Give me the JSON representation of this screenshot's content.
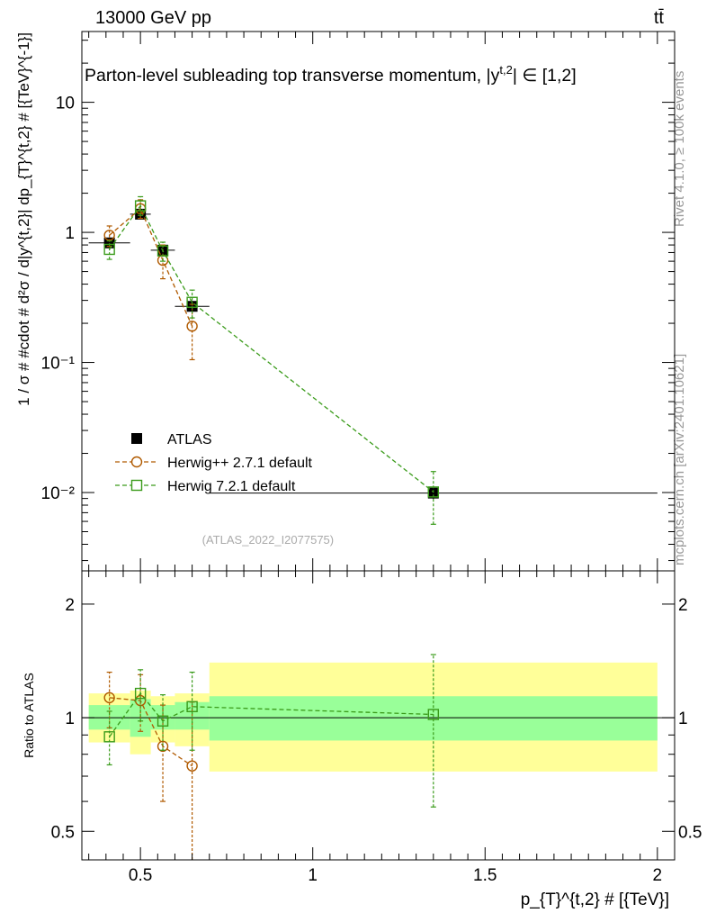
{
  "header": {
    "energy_label": "13000 GeV pp",
    "process_label": "tt̄"
  },
  "side_labels": {
    "rivet": "Rivet 4.1.0, ≥ 100k events",
    "mcplots": "mcplots.cern.ch [arXiv:2401.10621]"
  },
  "chart_data": [
    {
      "type": "scatter",
      "title": "Parton-level subleading top transverse momentum, |y",
      "title_sup": "t,2",
      "title_suffix": "| ∈ [1,2]",
      "ylabel": "1 / σ # #cdot # d²σ / d|y^{t,2}| dp_{T}^{t,2} # [{TeV}^{-1}]",
      "yscale": "log",
      "xlim": [
        0.33,
        2.05
      ],
      "ylim": [
        0.0025,
        35
      ],
      "ytick_labels": [
        "10",
        "1",
        "10⁻¹",
        "10⁻²"
      ],
      "ytick_values": [
        10,
        1,
        0.1,
        0.01
      ],
      "legend": [
        "ATLAS",
        "Herwig++ 2.7.1 default",
        "Herwig 7.2.1 default"
      ],
      "watermark": "(ATLAS_2022_I2077575)",
      "series": [
        {
          "name": "ATLAS",
          "color": "#000000",
          "marker": "filled-square",
          "x": [
            0.41,
            0.5,
            0.565,
            0.65,
            1.35
          ],
          "xerr": [
            [
              0.35,
              0.47
            ],
            [
              0.47,
              0.53
            ],
            [
              0.53,
              0.6
            ],
            [
              0.6,
              0.7
            ],
            [
              0.7,
              2.0
            ]
          ],
          "y": [
            0.83,
            1.38,
            0.73,
            0.27,
            0.0099
          ],
          "yerr": [
            0.06,
            0.07,
            0.05,
            0.03,
            0.001
          ]
        },
        {
          "name": "Herwig++ 2.7.1 default",
          "color": "#b05a00",
          "marker": "open-circle",
          "x": [
            0.41,
            0.5,
            0.565,
            0.65
          ],
          "y": [
            0.95,
            1.52,
            0.61,
            0.19
          ],
          "ylow": [
            0.78,
            1.28,
            0.44,
            0.105
          ],
          "yhigh": [
            1.12,
            1.78,
            0.8,
            0.28
          ]
        },
        {
          "name": "Herwig 7.2.1 default",
          "color": "#3a9b1a",
          "marker": "open-square",
          "x": [
            0.41,
            0.5,
            0.565,
            0.65,
            1.35
          ],
          "y": [
            0.74,
            1.6,
            0.72,
            0.29,
            0.0101
          ],
          "ylow": [
            0.62,
            1.35,
            0.6,
            0.22,
            0.0057
          ],
          "yhigh": [
            0.86,
            1.88,
            0.84,
            0.36,
            0.0145
          ]
        }
      ]
    },
    {
      "type": "scatter",
      "title": "Ratio to ATLAS",
      "ylabel": "Ratio to ATLAS",
      "xlabel": "p_{T}^{t,2} # [{TeV}]",
      "yscale": "log",
      "xlim": [
        0.33,
        2.05
      ],
      "ylim": [
        0.42,
        2.45
      ],
      "ytick_labels": [
        "2",
        "1",
        "0.5"
      ],
      "ytick_values": [
        2,
        1,
        0.5
      ],
      "xtick_labels": [
        "0.5",
        "1",
        "1.5",
        "2"
      ],
      "xtick_values": [
        0.5,
        1,
        1.5,
        2
      ],
      "bands": [
        {
          "xlo": 0.35,
          "xhi": 0.47,
          "inner": [
            0.93,
            1.08
          ],
          "outer": [
            0.86,
            1.16
          ]
        },
        {
          "xlo": 0.47,
          "xhi": 0.53,
          "inner": [
            0.89,
            1.12
          ],
          "outer": [
            0.8,
            1.18
          ]
        },
        {
          "xlo": 0.53,
          "xhi": 0.6,
          "inner": [
            0.93,
            1.08
          ],
          "outer": [
            0.86,
            1.14
          ]
        },
        {
          "xlo": 0.6,
          "xhi": 0.7,
          "inner": [
            0.93,
            1.1
          ],
          "outer": [
            0.84,
            1.16
          ]
        },
        {
          "xlo": 0.7,
          "xhi": 2.0,
          "inner": [
            0.87,
            1.14
          ],
          "outer": [
            0.72,
            1.4
          ]
        }
      ],
      "series": [
        {
          "name": "Herwig++ 2.7.1 default",
          "color": "#b05a00",
          "marker": "open-circle",
          "x": [
            0.41,
            0.5,
            0.565,
            0.65
          ],
          "y": [
            1.13,
            1.11,
            0.84,
            0.745
          ],
          "ylow": [
            0.94,
            0.92,
            0.6,
            0.38
          ],
          "yhigh": [
            1.32,
            1.3,
            1.08,
            1.1
          ]
        },
        {
          "name": "Herwig 7.2.1 default",
          "color": "#3a9b1a",
          "marker": "open-square",
          "x": [
            0.41,
            0.5,
            0.565,
            0.65,
            1.35
          ],
          "y": [
            0.89,
            1.16,
            0.98,
            1.07,
            1.02
          ],
          "ylow": [
            0.75,
            0.98,
            0.82,
            0.82,
            0.58
          ],
          "yhigh": [
            1.04,
            1.34,
            1.15,
            1.32,
            1.47
          ]
        }
      ]
    }
  ]
}
